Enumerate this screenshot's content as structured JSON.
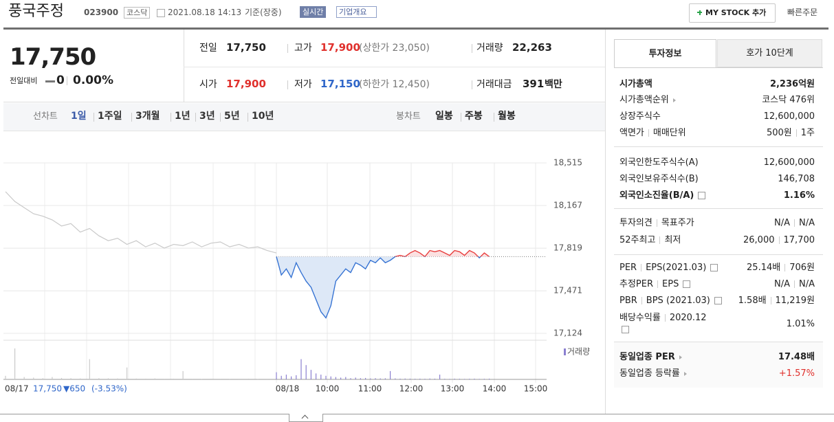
{
  "header": {
    "name": "풍국주정",
    "code": "023900",
    "market": "코스닥",
    "datetime": "2021.08.18 14:13",
    "basis": "기준(장중)",
    "realtime": "실시간",
    "company_info": "기업개요",
    "my_stock": "MY STOCK 추가",
    "quick_order": "빠른주문"
  },
  "quote": {
    "price": "17,750",
    "change_label": "전일대비",
    "change": "0",
    "change_rate": "0.00%",
    "prev_label": "전일",
    "prev": "17,750",
    "high_label": "고가",
    "high": "17,900",
    "upper_limit": "(상한가 23,050)",
    "volume_label": "거래량",
    "volume": "22,263",
    "open_label": "시가",
    "open": "17,900",
    "low_label": "저가",
    "low": "17,150",
    "lower_limit": "(하한가 12,450)",
    "amount_label": "거래대금",
    "amount": "391",
    "amount_unit": "백만"
  },
  "chart_tabs": {
    "line_label": "선차트",
    "line_periods": [
      "1일",
      "1주일",
      "3개월",
      "1년",
      "3년",
      "5년",
      "10년"
    ],
    "candle_label": "봉차트",
    "candle_periods": [
      "일봉",
      "주봉",
      "월봉"
    ]
  },
  "price_chart": {
    "type": "line",
    "ylim": [
      17124,
      18515
    ],
    "yticks": [
      {
        "value": 18515,
        "label": "18,515"
      },
      {
        "value": 18167,
        "label": "18,167"
      },
      {
        "value": 17819,
        "label": "17,819"
      },
      {
        "value": 17471,
        "label": "17,471"
      },
      {
        "value": 17124,
        "label": "17,124"
      }
    ],
    "reference": 17750,
    "xticks": [
      "08/18",
      "10:00",
      "11:00",
      "12:00",
      "13:00",
      "14:00",
      "15:00"
    ],
    "series": [
      {
        "color": "#c9c9c9",
        "values": [
          18280,
          18200,
          18150,
          18100,
          18080,
          18050,
          18000,
          18020,
          17950,
          17980,
          17920,
          17880,
          17900,
          17850,
          17880,
          17830,
          17860,
          17820,
          17850,
          17840,
          17870,
          17830,
          17860,
          17870,
          17830,
          17850,
          17820,
          17830,
          17800,
          17780
        ]
      },
      {
        "color_up": "#e83c3c",
        "color_down": "#3673d3",
        "values": [
          17750,
          17600,
          17650,
          17580,
          17700,
          17620,
          17550,
          17500,
          17400,
          17300,
          17250,
          17350,
          17550,
          17600,
          17650,
          17620,
          17700,
          17680,
          17650,
          17720,
          17700,
          17740,
          17700,
          17720,
          17750,
          17760,
          17750,
          17780,
          17800,
          17780,
          17750,
          17800,
          17790,
          17800,
          17780,
          17760,
          17800,
          17790,
          17760,
          17800,
          17780,
          17740,
          17780,
          17750
        ]
      }
    ],
    "volume_label": "거래량",
    "volume_ylim": [
      0,
      3000
    ],
    "volume_series": [
      {
        "color": "#c9c9c9",
        "values": [
          300,
          2600,
          200,
          150,
          100,
          200,
          120,
          100,
          80,
          1700,
          100,
          90,
          80,
          1000,
          70,
          60,
          80,
          50,
          60,
          700,
          50,
          40,
          60,
          50,
          40,
          50,
          60,
          40,
          50,
          80
        ]
      },
      {
        "color": "#8a7fd0",
        "values": [
          600,
          300,
          400,
          250,
          350,
          1700,
          1200,
          800,
          500,
          400,
          300,
          250,
          200,
          150,
          200,
          100,
          150,
          100,
          120,
          80,
          100,
          80,
          90,
          700,
          80,
          60,
          70,
          60,
          50,
          60,
          50,
          70,
          60,
          400,
          50,
          40,
          60,
          50,
          40,
          50,
          60,
          40,
          50,
          60
        ]
      }
    ],
    "prev_date": "08/17",
    "prev_close": "17,750",
    "prev_change": "▼650",
    "prev_change_rate": "(-3.53%)"
  },
  "invest_info": {
    "tabs": [
      "투자정보",
      "호가 10단계"
    ],
    "groups": [
      [
        {
          "labels": [
            "시가총액"
          ],
          "values": [
            "2,236억원"
          ]
        },
        {
          "labels": [
            "시가총액순위"
          ],
          "values": [
            "코스닥 476위"
          ]
        },
        {
          "labels": [
            "상장주식수"
          ],
          "values": [
            "12,600,000"
          ]
        },
        {
          "labels": [
            "액면가",
            "매매단위"
          ],
          "values": [
            "500원",
            "1주"
          ]
        }
      ],
      [
        {
          "labels": [
            "외국인한도주식수(A)"
          ],
          "values": [
            "12,600,000"
          ]
        },
        {
          "labels": [
            "외국인보유주식수(B)"
          ],
          "values": [
            "146,708"
          ]
        },
        {
          "labels": [
            "외국인소진율(B/A)"
          ],
          "values": [
            "1.16%"
          ]
        }
      ],
      [
        {
          "labels": [
            "투자의견",
            "목표주가"
          ],
          "values": [
            "N/A",
            "N/A"
          ]
        },
        {
          "labels": [
            "52주최고",
            "최저"
          ],
          "values": [
            "26,000",
            "17,700"
          ]
        }
      ],
      [
        {
          "labels": [
            "PER",
            "EPS(2021.03)"
          ],
          "values": [
            "25.14배",
            "706원"
          ]
        },
        {
          "labels": [
            "추정PER",
            "EPS"
          ],
          "values": [
            "N/A",
            "N/A"
          ]
        },
        {
          "labels": [
            "PBR",
            "BPS (2021.03)"
          ],
          "values": [
            "1.58배",
            "11,219원"
          ]
        },
        {
          "labels": [
            "배당수익률",
            "2020.12"
          ],
          "values": [
            "1.01%"
          ]
        }
      ],
      [
        {
          "labels": [
            "동일업종 PER"
          ],
          "values": [
            "17.48배"
          ]
        },
        {
          "labels": [
            "동일업종 등락률"
          ],
          "values": [
            "+1.57%"
          ]
        }
      ]
    ]
  }
}
